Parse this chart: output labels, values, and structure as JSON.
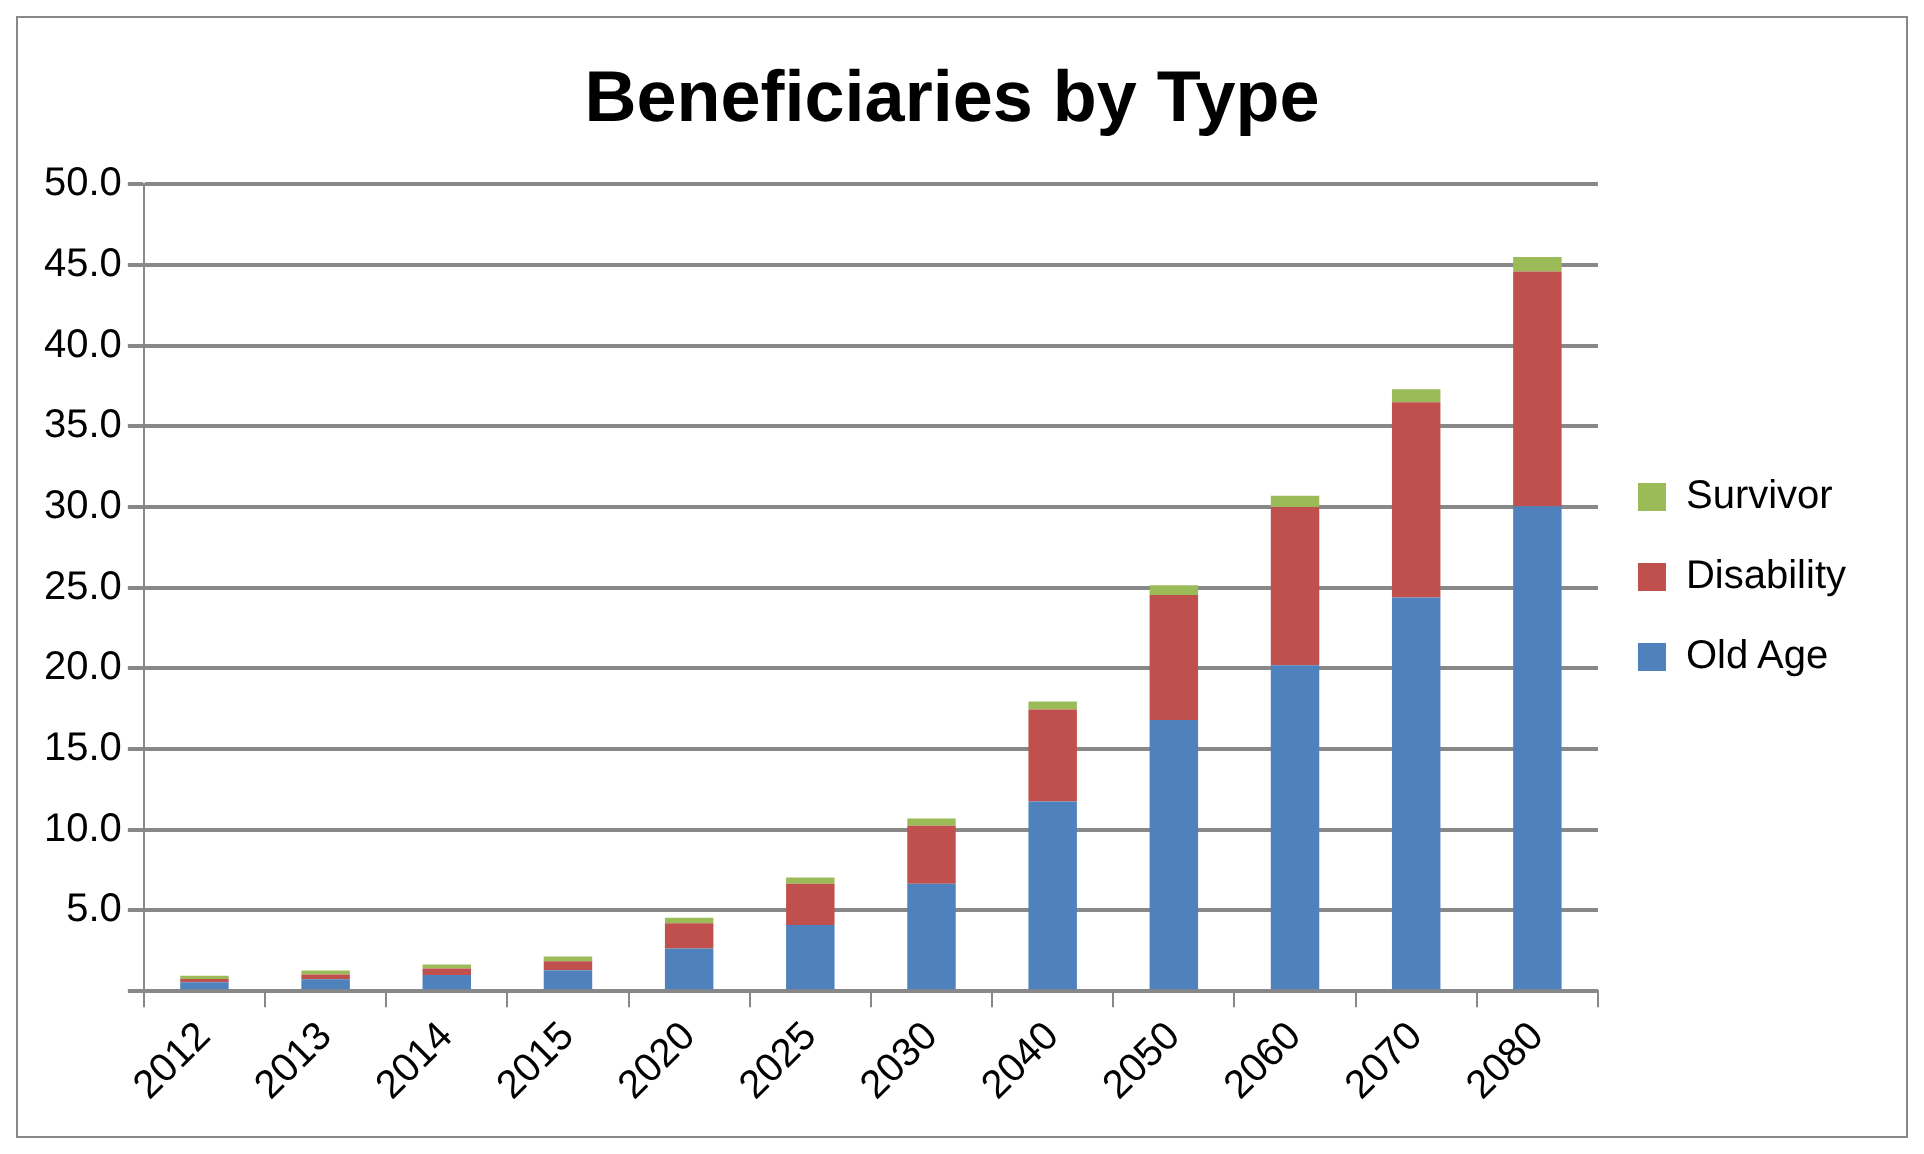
{
  "chart_data": {
    "type": "bar",
    "title": "Beneficiaries by Type",
    "stacked": true,
    "legend": "right",
    "grid": "y",
    "categories": [
      "2012",
      "2013",
      "2014",
      "2015",
      "2020",
      "2025",
      "2030",
      "2040",
      "2050",
      "2060",
      "2070",
      "2080"
    ],
    "series": [
      {
        "name": "Old Age",
        "color": "#4f81bd",
        "values": [
          0.55,
          0.73,
          1.0,
          1.3,
          2.65,
          4.1,
          6.65,
          11.75,
          16.8,
          20.2,
          24.4,
          30.05
        ]
      },
      {
        "name": "Disability",
        "color": "#c0504d",
        "values": [
          0.2,
          0.3,
          0.4,
          0.55,
          1.55,
          2.55,
          3.6,
          5.7,
          7.75,
          9.8,
          12.1,
          14.55
        ]
      },
      {
        "name": "Survivor",
        "color": "#9bbb59",
        "values": [
          0.2,
          0.25,
          0.25,
          0.3,
          0.35,
          0.4,
          0.45,
          0.5,
          0.6,
          0.7,
          0.8,
          0.9
        ]
      }
    ],
    "ylim": [
      0,
      50
    ],
    "yticks": [
      {
        "value": 0,
        "label": null
      },
      {
        "value": 5,
        "label": "5.0"
      },
      {
        "value": 10,
        "label": "10.0"
      },
      {
        "value": 15,
        "label": "15.0"
      },
      {
        "value": 20,
        "label": "20.0"
      },
      {
        "value": 25,
        "label": "25.0"
      },
      {
        "value": 30,
        "label": "30.0"
      },
      {
        "value": 35,
        "label": "35.0"
      },
      {
        "value": 40,
        "label": "40.0"
      },
      {
        "value": 45,
        "label": "45.0"
      },
      {
        "value": 50,
        "label": "50.0"
      }
    ]
  }
}
